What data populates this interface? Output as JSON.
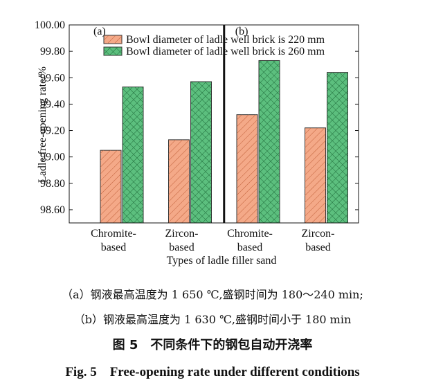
{
  "chart_data": {
    "type": "bar",
    "y_label": "Ladle free-opening rate/%",
    "x_label": "Types of ladle filler sand",
    "panels": [
      "(a)",
      "(b)"
    ],
    "categories": [
      [
        "Chromite-",
        "based"
      ],
      [
        "Zircon-",
        "based"
      ],
      [
        "Chromite-",
        "based"
      ],
      [
        "Zircon-",
        "based"
      ]
    ],
    "series": [
      {
        "name": "Bowl diameter of ladle well brick is 220 mm",
        "color": "#f4a988",
        "values": [
          99.05,
          99.13,
          99.32,
          99.22
        ]
      },
      {
        "name": "Bowl diameter of ladle well brick is 260 mm",
        "color": "#5cbf7e",
        "values": [
          99.53,
          99.57,
          99.73,
          99.64
        ]
      }
    ],
    "ylim": [
      98.5,
      100.0
    ],
    "yticks": [
      {
        "value": 98.6,
        "label": "98.60"
      },
      {
        "value": 98.8,
        "label": "98.80"
      },
      {
        "value": 99.0,
        "label": "99.00"
      },
      {
        "value": 99.2,
        "label": "99.20"
      },
      {
        "value": 99.4,
        "label": "99.40"
      },
      {
        "value": 99.6,
        "label": "99.60"
      },
      {
        "value": 99.8,
        "label": "99.80"
      },
      {
        "value": 100.0,
        "label": "100.00"
      }
    ],
    "legend": "upper left"
  },
  "captions": {
    "note_a": "（a）钢液最高温度为 1 650 ℃,盛钢时间为 180～240 min;",
    "note_b": "（b）钢液最高温度为 1 630 ℃,盛钢时间小于 180 min",
    "title_cn": "图 5　不同条件下的钢包自动开浇率",
    "title_en": "Fig. 5　Free-opening rate under different conditions"
  }
}
